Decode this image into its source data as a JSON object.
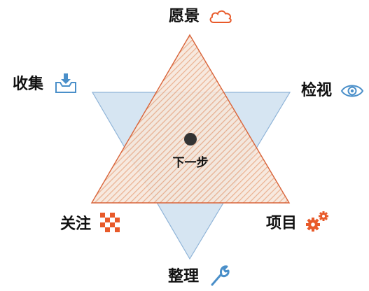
{
  "diagram": {
    "center_label": "下一步",
    "nodes": {
      "top": {
        "label": "愿景",
        "icon": "cloud-icon"
      },
      "upper_left": {
        "label": "收集",
        "icon": "inbox-icon"
      },
      "upper_right": {
        "label": "检视",
        "icon": "eye-icon"
      },
      "lower_left": {
        "label": "关注",
        "icon": "checker-grid-icon"
      },
      "lower_right": {
        "label": "项目",
        "icon": "gears-icon"
      },
      "bottom": {
        "label": "整理",
        "icon": "wrench-icon"
      }
    },
    "colors": {
      "up_triangle_stroke": "#d9643a",
      "up_triangle_hatch": "#e8a884",
      "down_triangle_fill": "#cfe0f0",
      "down_triangle_stroke": "#8fb4d8",
      "center_dot": "#333333",
      "accent_orange": "#e85a2a",
      "accent_blue": "#4a8fc9"
    }
  }
}
